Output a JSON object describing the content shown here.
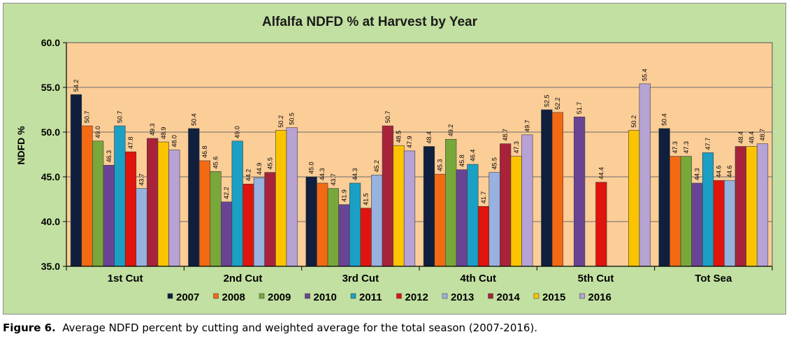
{
  "chart_data": {
    "type": "bar",
    "title": "Alfalfa NDFD % at Harvest by Year",
    "ylabel": "NDFD %",
    "xlabel": "",
    "ylim": [
      35.0,
      60.0
    ],
    "yticks": [
      "35.0",
      "40.0",
      "45.0",
      "50.0",
      "55.0",
      "60.0"
    ],
    "grid": true,
    "legend_position": "bottom",
    "categories": [
      "1st Cut",
      "2nd Cut",
      "3rd Cut",
      "4th Cut",
      "5th Cut",
      "Tot Sea"
    ],
    "series": [
      {
        "name": "2007",
        "color": "#0f1f3d",
        "values": [
          54.2,
          50.4,
          45.0,
          48.4,
          52.5,
          50.4
        ],
        "labels": [
          "54.2",
          "50.4",
          "45.0",
          "48.4",
          "52.5",
          "50.4"
        ]
      },
      {
        "name": "2008",
        "color": "#f46a12",
        "values": [
          50.7,
          46.8,
          44.3,
          45.3,
          52.2,
          47.3
        ],
        "labels": [
          "50.7",
          "46.8",
          "44.3",
          "45.3",
          "52.2",
          "47.3"
        ]
      },
      {
        "name": "2009",
        "color": "#79a83a",
        "values": [
          49.0,
          45.6,
          43.7,
          49.2,
          null,
          47.3
        ],
        "labels": [
          "49.0",
          "45.6",
          "43.7",
          "49.2",
          "",
          "47.3"
        ]
      },
      {
        "name": "2010",
        "color": "#6a4494",
        "values": [
          46.3,
          42.2,
          41.9,
          45.8,
          51.7,
          44.3
        ],
        "labels": [
          "46.3",
          "42.2",
          "41.9",
          "45.8",
          "51.7",
          "44.3"
        ]
      },
      {
        "name": "2011",
        "color": "#1aa0c4",
        "values": [
          50.7,
          49.0,
          44.3,
          46.4,
          null,
          47.7
        ],
        "labels": [
          "50.7",
          "49.0",
          "44.3",
          "46.4",
          "",
          "47.7"
        ]
      },
      {
        "name": "2012",
        "color": "#e0140c",
        "values": [
          47.8,
          44.2,
          41.5,
          41.7,
          44.4,
          44.6
        ],
        "labels": [
          "47.8",
          "44.2",
          "41.5",
          "41.7",
          "44.4",
          "44.6"
        ]
      },
      {
        "name": "2013",
        "color": "#97b2de",
        "values": [
          43.7,
          44.9,
          45.2,
          45.5,
          null,
          44.6
        ],
        "labels": [
          "43.7",
          "44.9",
          "45.2",
          "45.5",
          "",
          "44.6"
        ]
      },
      {
        "name": "2014",
        "color": "#a8233a",
        "values": [
          49.3,
          45.5,
          50.7,
          48.7,
          null,
          48.4
        ],
        "labels": [
          "49.3",
          "45.5",
          "50.7",
          "48.7",
          "",
          "48.4"
        ]
      },
      {
        "name": "2015",
        "color": "#fcc400",
        "values": [
          48.9,
          50.2,
          48.5,
          47.3,
          50.2,
          48.4
        ],
        "labels": [
          "48.9",
          "50.2",
          "48.5",
          "47.3",
          "50.2",
          "48.4"
        ]
      },
      {
        "name": "2016",
        "color": "#b6a2d4",
        "values": [
          48.0,
          50.5,
          47.9,
          49.7,
          55.4,
          48.7
        ],
        "labels": [
          "48.0",
          "50.5",
          "47.9",
          "49.7",
          "55.4",
          "48.7"
        ]
      }
    ]
  },
  "colors": {
    "frame_background": "#c2e0a1",
    "plot_background": "#fbcd97",
    "gridline": "#6b6b6b"
  },
  "caption": {
    "label": "Figure 6.",
    "text": "Average NDFD percent by cutting and weighted average for the total season (2007-2016)."
  }
}
